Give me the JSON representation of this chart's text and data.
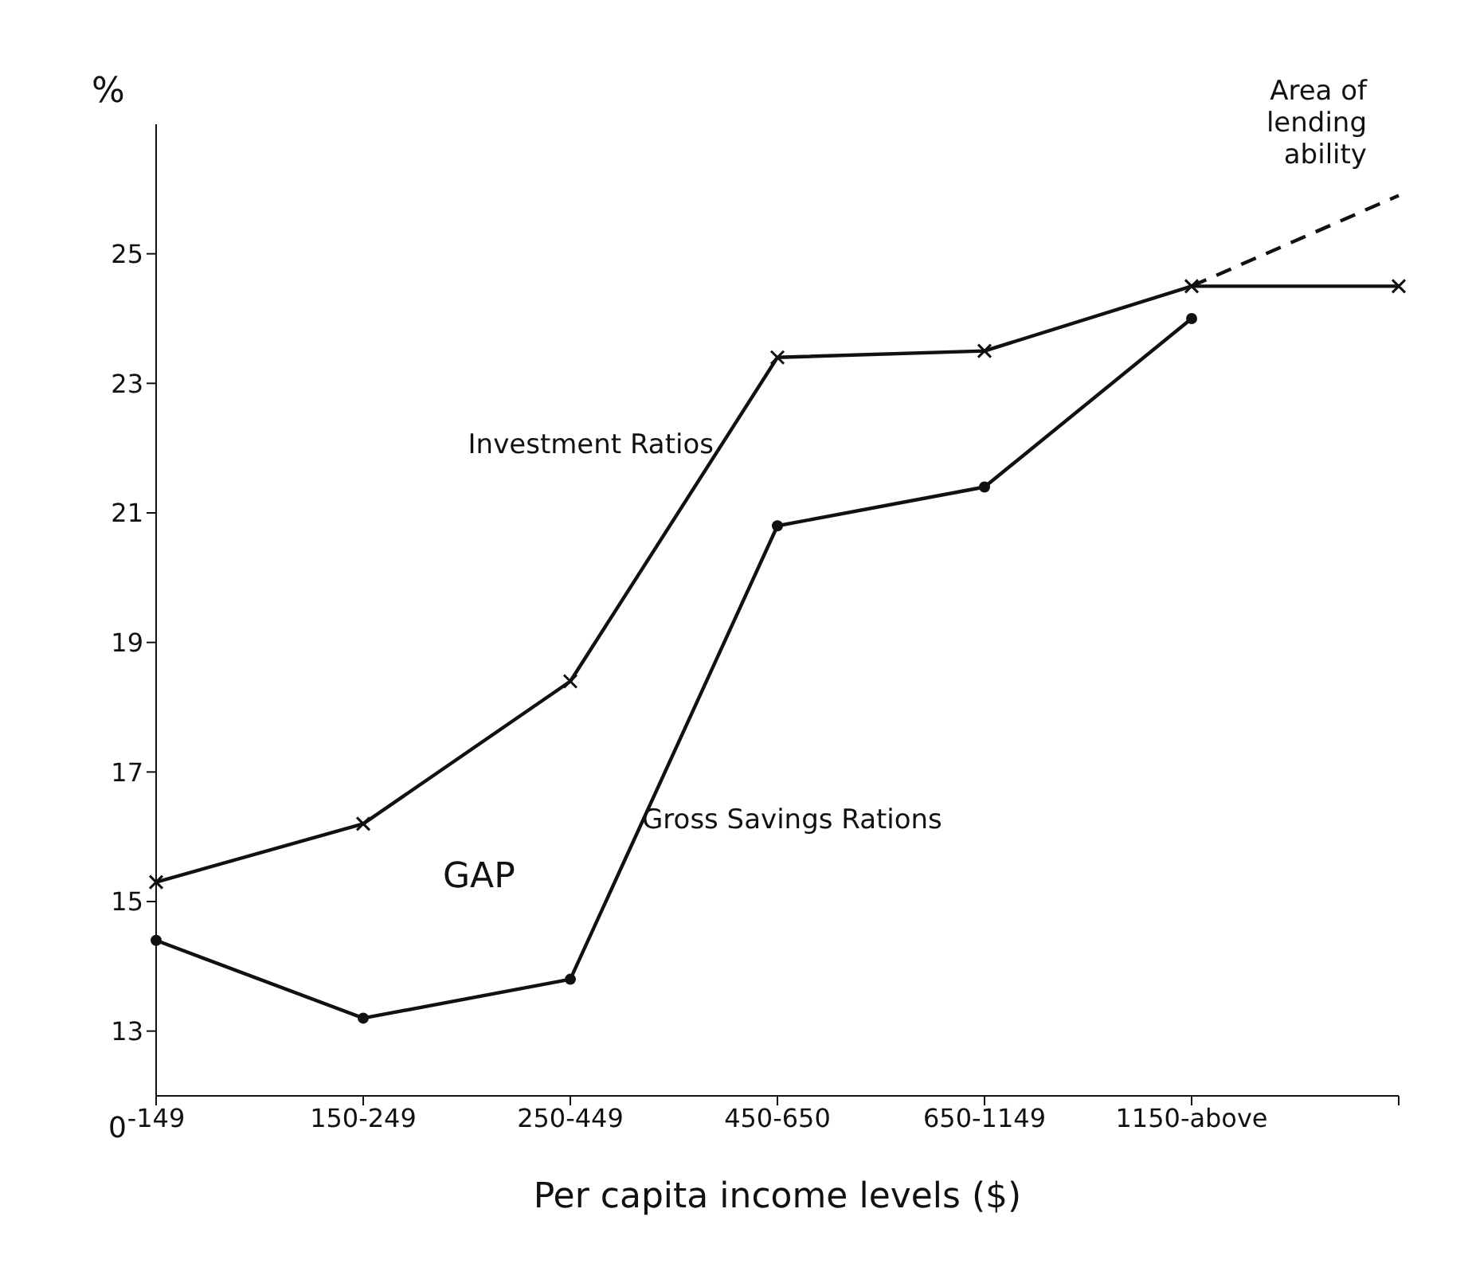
{
  "chart_data": {
    "type": "line",
    "xlabel": "Per capita income levels ($)",
    "ylabel": "%",
    "categories": [
      "-149",
      "150-249",
      "250-449",
      "450-650",
      "650-1149",
      "1150-above",
      null
    ],
    "series": [
      {
        "name": "Investment Ratios",
        "color": "#111111",
        "marker": "cross",
        "values": [
          15.3,
          16.2,
          18.4,
          23.4,
          23.5,
          24.5,
          24.5
        ]
      },
      {
        "name": "Gross Savings Rations",
        "color": "#111111",
        "marker": "circle",
        "values": [
          14.4,
          13.2,
          13.8,
          20.8,
          21.4,
          24.0,
          null
        ]
      },
      {
        "name": "Area of lending ability",
        "color": "#111111",
        "line_style": "dashed",
        "values": [
          null,
          null,
          null,
          null,
          null,
          24.5,
          25.9
        ]
      }
    ],
    "ylim": [
      12,
      27
    ],
    "yticks": [
      13,
      15,
      17,
      19,
      21,
      23,
      25
    ],
    "grid": false,
    "legend": false,
    "annotations": [
      "GAP",
      "0"
    ]
  }
}
